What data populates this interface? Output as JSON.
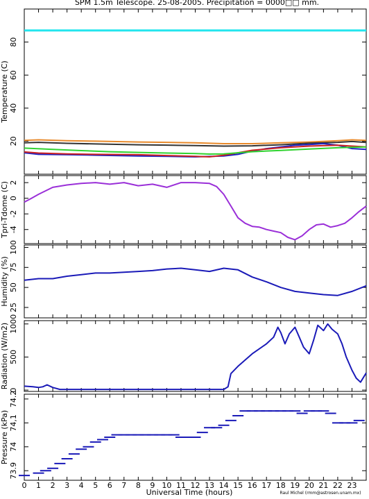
{
  "title": "SPM 1.5m Telescope. 25-08-2005. Precipitation = 0000□□ mm.",
  "credit": "Raul Michel (rmm@astrosen.unam.mx)",
  "xlabel": "Universal Time (hours)",
  "x_ticks": [
    "0",
    "1",
    "2",
    "3",
    "4",
    "5",
    "6",
    "7",
    "8",
    "9",
    "10",
    "11",
    "12",
    "13",
    "14",
    "15",
    "16",
    "17",
    "18",
    "19",
    "20",
    "21",
    "22",
    "23"
  ],
  "colors": {
    "cyan": "#22e5ee",
    "orange": "#e8892a",
    "dark": "#333333",
    "blue": "#1c22c4",
    "red": "#cc2222",
    "green": "#2fd22f",
    "purple": "#9a2fd8",
    "navy": "#1a1ab8"
  },
  "chart_data": [
    {
      "type": "line",
      "ylabel": "Temperature (C)",
      "ylim": [
        0,
        100
      ],
      "y_ticks": [
        "20",
        "40",
        "60",
        "80"
      ],
      "series": [
        {
          "color_key": "cyan",
          "x": [
            0,
            24
          ],
          "y": [
            87,
            87
          ]
        },
        {
          "color_key": "orange",
          "x": [
            0,
            1,
            3,
            5,
            8,
            10,
            12,
            14,
            16,
            18,
            20,
            22,
            23,
            24
          ],
          "y": [
            20.5,
            20.8,
            20.3,
            20.0,
            19.5,
            19.3,
            19.0,
            18.5,
            18.5,
            19.0,
            19.5,
            20.3,
            20.8,
            20.5
          ]
        },
        {
          "color_key": "dark",
          "x": [
            0,
            1,
            3,
            5,
            8,
            10,
            12,
            14,
            16,
            18,
            20,
            22,
            23,
            24
          ],
          "y": [
            19.0,
            19.3,
            18.7,
            18.3,
            17.8,
            17.6,
            17.3,
            17.0,
            17.2,
            17.8,
            18.8,
            19.3,
            19.8,
            19.2
          ]
        },
        {
          "color_key": "blue",
          "x": [
            0,
            1,
            3,
            5,
            8,
            10,
            12,
            14,
            15,
            16,
            17,
            18,
            19,
            20,
            21,
            22,
            23,
            24
          ],
          "y": [
            13.0,
            12.0,
            11.8,
            11.5,
            11.0,
            10.8,
            10.5,
            11.0,
            12.0,
            14.0,
            15.5,
            16.5,
            17.5,
            18.0,
            18.5,
            17.5,
            15.5,
            15.0
          ]
        },
        {
          "color_key": "red",
          "x": [
            0,
            1,
            3,
            5,
            8,
            10,
            12,
            13,
            14,
            15,
            16,
            18,
            20,
            22,
            23,
            24
          ],
          "y": [
            13.5,
            12.8,
            12.3,
            12.0,
            11.8,
            11.3,
            10.8,
            10.5,
            11.5,
            13.0,
            14.5,
            16.0,
            17.0,
            17.5,
            17.0,
            16.5
          ]
        },
        {
          "color_key": "green",
          "x": [
            0,
            2,
            4,
            6,
            8,
            10,
            12,
            13,
            14,
            15,
            16,
            18,
            20,
            22,
            23,
            24
          ],
          "y": [
            15.8,
            15.0,
            14.3,
            13.6,
            13.2,
            12.8,
            12.5,
            12.2,
            12.3,
            13.0,
            13.6,
            14.4,
            15.2,
            16.0,
            16.3,
            16.5
          ]
        }
      ]
    },
    {
      "type": "line",
      "ylabel": "Tpri-Tdome (C)",
      "ylim": [
        -5.8,
        2.9
      ],
      "y_ticks": [
        "-4",
        "-2",
        "0",
        "2"
      ],
      "series": [
        {
          "color_key": "purple",
          "x": [
            0,
            0.5,
            1,
            2,
            3,
            4,
            5,
            6,
            7,
            8,
            9,
            10,
            11,
            12,
            13,
            13.5,
            14,
            14.5,
            15,
            15.5,
            16,
            16.5,
            17,
            17.5,
            18,
            18.5,
            19,
            19.5,
            20,
            20.5,
            21,
            21.5,
            22,
            22.5,
            23,
            23.5,
            24
          ],
          "y": [
            -0.5,
            0,
            0.5,
            1.4,
            1.7,
            1.9,
            2.0,
            1.8,
            2.0,
            1.6,
            1.8,
            1.4,
            2.0,
            2.0,
            1.9,
            1.5,
            0.5,
            -1.0,
            -2.5,
            -3.2,
            -3.6,
            -3.7,
            -4.0,
            -4.2,
            -4.4,
            -5.0,
            -5.3,
            -4.8,
            -4.0,
            -3.4,
            -3.3,
            -3.7,
            -3.5,
            -3.2,
            -2.5,
            -1.7,
            -1.0
          ]
        }
      ]
    },
    {
      "type": "line",
      "ylabel": "Humidity (%)",
      "ylim": [
        12,
        103
      ],
      "y_ticks": [
        "25",
        "50",
        "75",
        "100"
      ],
      "series": [
        {
          "color_key": "navy",
          "x": [
            0,
            1,
            2,
            3,
            4,
            5,
            6,
            7,
            8,
            9,
            10,
            11,
            12,
            13,
            14,
            15,
            16,
            17,
            18,
            19,
            20,
            21,
            22,
            23,
            24
          ],
          "y": [
            59,
            61,
            61,
            64,
            66,
            68,
            68,
            69,
            70,
            71,
            73,
            74,
            72,
            70,
            74,
            72,
            63,
            57,
            50,
            45,
            43,
            41,
            40,
            45,
            52
          ]
        }
      ]
    },
    {
      "type": "line",
      "ylabel": "Radiation (W/m2)",
      "ylim": [
        -20,
        1050
      ],
      "y_ticks": [
        "0",
        "500",
        "1000"
      ],
      "series": [
        {
          "color_key": "navy",
          "x": [
            0,
            0.6,
            1,
            1.3,
            1.6,
            2.0,
            2.5,
            4,
            6,
            8,
            10,
            12,
            13,
            14,
            14.3,
            14.5,
            15,
            16,
            17,
            17.5,
            17.8,
            18.0,
            18.3,
            18.6,
            19,
            19.3,
            19.6,
            20,
            20.3,
            20.6,
            21,
            21.3,
            21.6,
            22,
            22.3,
            22.6,
            23,
            23.3,
            23.6,
            24
          ],
          "y": [
            60,
            50,
            40,
            50,
            80,
            40,
            10,
            10,
            10,
            10,
            10,
            10,
            10,
            10,
            50,
            250,
            360,
            550,
            700,
            800,
            950,
            870,
            700,
            850,
            950,
            800,
            650,
            550,
            750,
            980,
            900,
            1000,
            920,
            850,
            700,
            500,
            300,
            180,
            120,
            260
          ]
        }
      ]
    },
    {
      "type": "scatter",
      "ylabel": "Pressure (kPa)",
      "ylim": [
        73.86,
        74.22
      ],
      "y_ticks": [
        "73.9",
        "74",
        "74,1",
        "74.2"
      ],
      "series": [
        {
          "color_key": "navy",
          "x": [
            0,
            1,
            1.5,
            2,
            2.5,
            3,
            3.5,
            4,
            4.5,
            5,
            5.5,
            6,
            6.5,
            7,
            7.5,
            8,
            8.5,
            9,
            9.5,
            10,
            10.5,
            11,
            11.5,
            12,
            12.5,
            13,
            13.5,
            14,
            14.5,
            15,
            15.5,
            16,
            16.5,
            17,
            17.5,
            18,
            18.5,
            19,
            19.5,
            20,
            20.5,
            21,
            21.5,
            22,
            22.5,
            23,
            23.5
          ],
          "y": [
            73.88,
            73.89,
            73.9,
            73.91,
            73.93,
            73.95,
            73.97,
            73.99,
            74.0,
            74.02,
            74.03,
            74.04,
            74.05,
            74.05,
            74.05,
            74.05,
            74.05,
            74.05,
            74.05,
            74.05,
            74.05,
            74.04,
            74.04,
            74.04,
            74.06,
            74.08,
            74.08,
            74.09,
            74.11,
            74.13,
            74.15,
            74.15,
            74.15,
            74.15,
            74.15,
            74.15,
            74.15,
            74.15,
            74.14,
            74.15,
            74.15,
            74.15,
            74.14,
            74.1,
            74.1,
            74.1,
            74.11
          ]
        }
      ]
    }
  ]
}
